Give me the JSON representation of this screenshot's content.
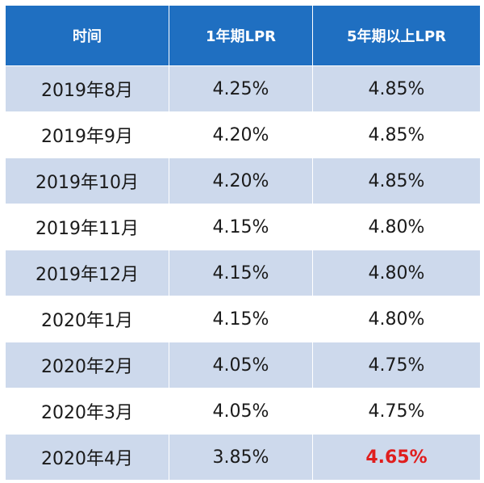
{
  "table": {
    "headers": [
      "时间",
      "1年期LPR",
      "5年期以上LPR"
    ],
    "rows": [
      {
        "date": "2019年8月",
        "lpr_1y": "4.25%",
        "lpr_5y": "4.85%"
      },
      {
        "date": "2019年9月",
        "lpr_1y": "4.20%",
        "lpr_5y": "4.85%"
      },
      {
        "date": "2019年10月",
        "lpr_1y": "4.20%",
        "lpr_5y": "4.85%"
      },
      {
        "date": "2019年11月",
        "lpr_1y": "4.15%",
        "lpr_5y": "4.80%"
      },
      {
        "date": "2019年12月",
        "lpr_1y": "4.15%",
        "lpr_5y": "4.80%"
      },
      {
        "date": "2020年1月",
        "lpr_1y": "4.15%",
        "lpr_5y": "4.80%"
      },
      {
        "date": "2020年2月",
        "lpr_1y": "4.05%",
        "lpr_5y": "4.75%"
      },
      {
        "date": "2020年3月",
        "lpr_1y": "4.05%",
        "lpr_5y": "4.75%"
      },
      {
        "date": "2020年4月",
        "lpr_1y": "3.85%",
        "lpr_5y": "4.65%"
      }
    ]
  },
  "colors": {
    "header_bg": "#1f6fc1",
    "stripe_bg": "#cdd9ec",
    "highlight_text": "#e01e1e"
  }
}
